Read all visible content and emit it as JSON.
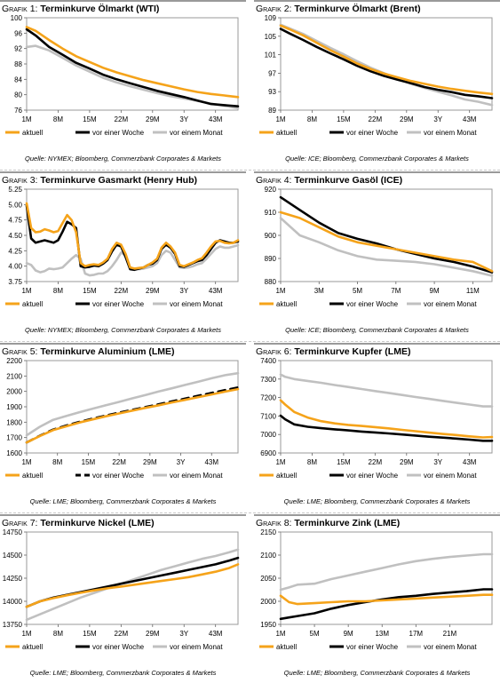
{
  "charts": [
    {
      "id": "g1",
      "label": "Grafik 1:",
      "title": "Terminkurve Ölmarkt (WTI)",
      "source": "Quelle: NYMEX; Bloomberg, Commerzbank Corporates & Markets",
      "legend": [
        "aktuell",
        "vor einer Woche",
        "vor einem Monat"
      ]
    },
    {
      "id": "g2",
      "label": "Grafik 2:",
      "title": "Terminkurve Ölmarkt (Brent)",
      "source": "Quelle: ICE; Bloomberg, Commerzbank Corporates & Markets",
      "legend": [
        "aktuell",
        "vor einer Woche",
        "vor einem Monat"
      ]
    },
    {
      "id": "g3",
      "label": "Grafik 3:",
      "title": "Terminkurve Gasmarkt (Henry Hub)",
      "source": "Quelle: NYMEX; Bloomberg, Commerzbank Corporates & Markets",
      "legend": [
        "aktuell",
        "vor einer Woche",
        "vor einem Monat"
      ]
    },
    {
      "id": "g4",
      "label": "Grafik 4:",
      "title": "Terminkurve Gasöl (ICE)",
      "source": "Quelle: ICE; Bloomberg, Commerzbank Corporates & Markets",
      "legend": [
        "aktuell",
        "vor einer Woche",
        "vor einem Monat"
      ]
    },
    {
      "id": "g5",
      "label": "Grafik 5:",
      "title": " Terminkurve Aluminium (LME)",
      "source": "Quelle: LME; Bloomberg, Commerzbank Corporates & Markets",
      "legend": [
        "aktuell",
        "vor einer Woche",
        "vor einem Monat"
      ]
    },
    {
      "id": "g6",
      "label": "Grafik 6:",
      "title": " Terminkurve Kupfer (LME)",
      "source": "Quelle: LME; Bloomberg, Commerzbank Corporates & Markets",
      "legend": [
        "aktuell",
        "vor einer Woche",
        "vor einem Monat"
      ]
    },
    {
      "id": "g7",
      "label": "Grafik 7:",
      "title": "Terminkurve Nickel (LME)",
      "source": "Quelle: LME; Bloomberg, Commerzbank Corporates & Markets",
      "legend": [
        "aktuell",
        "vor einer Woche",
        "vor einem Monat"
      ]
    },
    {
      "id": "g8",
      "label": "Grafik 8:",
      "title": "Terminkurve Zink (LME)",
      "source": "Quelle: LME; Bloomberg, Commerzbank Corporates & Markets",
      "legend": [
        "aktuell",
        "vor einer Woche",
        "vor einem Monat"
      ]
    }
  ],
  "colors": {
    "aktuell": "#f5a31a",
    "woche": "#000000",
    "monat": "#c0c0c0",
    "frame": "#9a9a9a"
  },
  "chart_data": [
    {
      "type": "line",
      "title": "Terminkurve Ölmarkt (WTI)",
      "x": [
        1,
        3,
        6,
        9,
        12,
        15,
        18,
        21,
        24,
        27,
        30,
        33,
        36,
        39,
        42,
        45,
        48
      ],
      "xticks": [
        "1M",
        "8M",
        "15M",
        "22M",
        "29M",
        "3Y",
        "43M"
      ],
      "xtick_values": [
        1,
        8,
        15,
        22,
        29,
        36,
        43
      ],
      "ylim": [
        76,
        100
      ],
      "yticks": [
        76,
        80,
        84,
        88,
        92,
        96,
        100
      ],
      "series": [
        {
          "name": "aktuell",
          "values": [
            97.6,
            96.6,
            94.2,
            92.0,
            90.0,
            88.5,
            87.0,
            85.8,
            84.8,
            83.8,
            83.0,
            82.2,
            81.4,
            80.7,
            80.2,
            79.8,
            79.4
          ]
        },
        {
          "name": "vor einer Woche",
          "values": [
            97.0,
            95.4,
            92.4,
            90.4,
            88.3,
            86.8,
            85.2,
            84.0,
            83.0,
            82.0,
            81.0,
            80.2,
            79.4,
            78.5,
            77.6,
            77.3,
            77.0
          ]
        },
        {
          "name": "vor einem Monat",
          "values": [
            92.4,
            92.7,
            91.5,
            89.6,
            87.6,
            86.0,
            84.4,
            83.2,
            82.2,
            81.3,
            80.4,
            79.6,
            79.0,
            78.4,
            77.7,
            77.1,
            76.5
          ]
        }
      ]
    },
    {
      "type": "line",
      "title": "Terminkurve Ölmarkt (Brent)",
      "x": [
        1,
        3,
        6,
        9,
        12,
        15,
        18,
        21,
        24,
        27,
        30,
        33,
        36,
        39,
        42,
        45,
        48
      ],
      "xticks": [
        "1M",
        "8M",
        "15M",
        "22M",
        "29M",
        "3Y",
        "43M"
      ],
      "xtick_values": [
        1,
        8,
        15,
        22,
        29,
        36,
        43
      ],
      "ylim": [
        89,
        109
      ],
      "yticks": [
        89,
        93,
        97,
        101,
        105,
        109
      ],
      "series": [
        {
          "name": "aktuell",
          "values": [
            107.3,
            106.5,
            105.2,
            103.6,
            102.0,
            100.6,
            99.1,
            97.9,
            96.9,
            96.1,
            95.3,
            94.7,
            94.1,
            93.6,
            93.2,
            92.8,
            92.5
          ]
        },
        {
          "name": "vor einer Woche",
          "values": [
            106.6,
            105.6,
            104.2,
            102.7,
            101.3,
            100.0,
            98.6,
            97.4,
            96.4,
            95.6,
            94.8,
            94.0,
            93.4,
            92.9,
            92.3,
            92.0,
            91.6
          ]
        },
        {
          "name": "vor einem Monat",
          "values": [
            107.5,
            106.7,
            105.5,
            104.0,
            102.5,
            101.1,
            99.6,
            98.2,
            97.0,
            95.8,
            94.7,
            93.8,
            93.0,
            92.2,
            91.3,
            90.8,
            90.1
          ]
        }
      ]
    },
    {
      "type": "line",
      "title": "Terminkurve Gasmarkt (Henry Hub)",
      "x": [
        1,
        2,
        3,
        4,
        5,
        6,
        7,
        8,
        9,
        10,
        11,
        12,
        13,
        14,
        15,
        16,
        17,
        18,
        19,
        20,
        21,
        22,
        23,
        24,
        25,
        26,
        27,
        28,
        29,
        30,
        31,
        32,
        33,
        34,
        35,
        36,
        37,
        38,
        39,
        40,
        41,
        42,
        43,
        44,
        45,
        46,
        47,
        48
      ],
      "xticks": [
        "1M",
        "8M",
        "15M",
        "22M",
        "29M",
        "3Y",
        "43M"
      ],
      "xtick_values": [
        1,
        8,
        15,
        22,
        29,
        36,
        43
      ],
      "ylim": [
        3.75,
        5.25
      ],
      "yticks": [
        3.75,
        4.0,
        4.25,
        4.5,
        4.75,
        5.0,
        5.25
      ],
      "series": [
        {
          "name": "aktuell",
          "values": [
            5.02,
            4.62,
            4.55,
            4.56,
            4.6,
            4.58,
            4.55,
            4.57,
            4.7,
            4.83,
            4.75,
            4.55,
            4.05,
            4.0,
            4.02,
            4.03,
            4.02,
            4.06,
            4.12,
            4.28,
            4.38,
            4.35,
            4.2,
            3.98,
            3.96,
            3.97,
            3.98,
            4.02,
            4.06,
            4.12,
            4.3,
            4.38,
            4.32,
            4.22,
            4.02,
            4.0,
            4.03,
            4.06,
            4.1,
            4.13,
            4.22,
            4.32,
            4.4,
            4.41,
            4.38,
            4.37,
            4.38,
            4.42
          ]
        },
        {
          "name": "vor einer Woche",
          "values": [
            4.98,
            4.45,
            4.38,
            4.4,
            4.42,
            4.4,
            4.38,
            4.42,
            4.56,
            4.72,
            4.68,
            4.62,
            4.0,
            3.98,
            3.99,
            4.01,
            4.0,
            4.04,
            4.1,
            4.24,
            4.35,
            4.32,
            4.15,
            3.95,
            3.94,
            3.96,
            3.98,
            4.02,
            4.04,
            4.1,
            4.28,
            4.35,
            4.3,
            4.2,
            4.0,
            3.99,
            4.02,
            4.05,
            4.08,
            4.1,
            4.18,
            4.28,
            4.38,
            4.42,
            4.4,
            4.38,
            4.38,
            4.4
          ]
        },
        {
          "name": "vor einem Monat",
          "values": [
            4.05,
            4.02,
            3.93,
            3.9,
            3.92,
            3.96,
            3.95,
            3.96,
            3.98,
            4.05,
            4.12,
            4.18,
            4.12,
            3.88,
            3.85,
            3.86,
            3.88,
            3.88,
            3.92,
            4.0,
            4.1,
            4.22,
            4.18,
            3.98,
            3.95,
            3.95,
            3.96,
            3.98,
            4.0,
            4.05,
            4.18,
            4.25,
            4.22,
            4.1,
            3.98,
            3.97,
            3.98,
            4.0,
            4.03,
            4.05,
            4.12,
            4.2,
            4.28,
            4.32,
            4.3,
            4.3,
            4.32,
            4.34
          ]
        }
      ]
    },
    {
      "type": "line",
      "title": "Terminkurve Gasöl (ICE)",
      "x": [
        1,
        2,
        3,
        4,
        5,
        6,
        7,
        8,
        9,
        10,
        11,
        12
      ],
      "xticks": [
        "1M",
        "3M",
        "5M",
        "7M",
        "9M",
        "11M"
      ],
      "xtick_values": [
        1,
        3,
        5,
        7,
        9,
        11
      ],
      "ylim": [
        880,
        920
      ],
      "yticks": [
        880,
        890,
        900,
        910,
        920
      ],
      "series": [
        {
          "name": "aktuell",
          "values": [
            910.0,
            907.5,
            903.5,
            899.5,
            897.0,
            895.5,
            894.0,
            892.5,
            891.0,
            889.5,
            888.5,
            884.5
          ]
        },
        {
          "name": "vor einer Woche",
          "values": [
            916.5,
            911.0,
            905.5,
            901.0,
            898.5,
            896.5,
            894.0,
            892.0,
            890.0,
            888.5,
            886.5,
            884.0
          ]
        },
        {
          "name": "vor einem Monat",
          "values": [
            907.5,
            900.0,
            897.0,
            893.5,
            891.0,
            889.5,
            889.0,
            888.5,
            887.5,
            886.0,
            884.5,
            882.5
          ]
        }
      ]
    },
    {
      "type": "line",
      "title": "Terminkurve Aluminium (LME)",
      "x": [
        1,
        4,
        7,
        10,
        13,
        16,
        19,
        22,
        25,
        28,
        31,
        34,
        37,
        40,
        43,
        46,
        49
      ],
      "xticks": [
        "1M",
        "8M",
        "15M",
        "22M",
        "29M",
        "3Y",
        "43M"
      ],
      "xtick_values": [
        1,
        8,
        15,
        22,
        29,
        36,
        43
      ],
      "ylim": [
        1600,
        2200
      ],
      "yticks": [
        1600,
        1700,
        1800,
        1900,
        2000,
        2100,
        2200
      ],
      "series": [
        {
          "name": "aktuell",
          "values": [
            1668,
            1710,
            1748,
            1773,
            1798,
            1818,
            1838,
            1857,
            1875,
            1893,
            1910,
            1928,
            1945,
            1963,
            1980,
            1998,
            2015
          ]
        },
        {
          "name": "vor einer Woche",
          "values": [
            1668,
            1712,
            1752,
            1778,
            1802,
            1823,
            1843,
            1862,
            1880,
            1898,
            1916,
            1935,
            1953,
            1972,
            1990,
            2008,
            2026
          ]
        },
        {
          "name": "vor einem Monat",
          "values": [
            1715,
            1770,
            1815,
            1840,
            1865,
            1888,
            1910,
            1932,
            1955,
            1977,
            1999,
            2020,
            2042,
            2063,
            2085,
            2105,
            2118
          ]
        }
      ]
    },
    {
      "type": "line",
      "title": "Terminkurve Kupfer (LME)",
      "x": [
        1,
        2,
        4,
        7,
        10,
        13,
        16,
        19,
        22,
        25,
        28,
        31,
        34,
        37,
        40,
        43,
        46,
        48
      ],
      "xticks": [
        "1M",
        "8M",
        "15M",
        "22M",
        "29M",
        "3Y",
        "43M"
      ],
      "xtick_values": [
        1,
        8,
        15,
        22,
        29,
        36,
        43
      ],
      "ylim": [
        6900,
        7400
      ],
      "yticks": [
        6900,
        7000,
        7100,
        7200,
        7300,
        7400
      ],
      "series": [
        {
          "name": "aktuell",
          "values": [
            7185,
            7162,
            7122,
            7092,
            7072,
            7060,
            7052,
            7046,
            7040,
            7033,
            7025,
            7018,
            7010,
            7003,
            6997,
            6990,
            6984,
            6986
          ]
        },
        {
          "name": "vor einer Woche",
          "values": [
            7102,
            7082,
            7055,
            7042,
            7034,
            7028,
            7022,
            7016,
            7011,
            7006,
            7000,
            6994,
            6988,
            6983,
            6978,
            6972,
            6966,
            6966
          ]
        },
        {
          "name": "vor einem Monat",
          "values": [
            7325,
            7312,
            7300,
            7290,
            7280,
            7268,
            7257,
            7246,
            7235,
            7225,
            7214,
            7203,
            7193,
            7182,
            7172,
            7162,
            7152,
            7152
          ]
        }
      ]
    },
    {
      "type": "line",
      "title": "Terminkurve Nickel (LME)",
      "x": [
        1,
        4,
        7,
        10,
        13,
        16,
        19,
        22,
        25,
        28,
        31,
        34,
        37,
        40,
        43,
        46,
        48
      ],
      "xticks": [
        "1M",
        "8M",
        "15M",
        "22M",
        "29M",
        "3Y",
        "43M"
      ],
      "xtick_values": [
        1,
        8,
        15,
        22,
        29,
        36,
        43
      ],
      "ylim": [
        13750,
        14750
      ],
      "yticks": [
        13750,
        14000,
        14250,
        14500,
        14750
      ],
      "series": [
        {
          "name": "aktuell",
          "values": [
            13940,
            14000,
            14035,
            14065,
            14092,
            14118,
            14140,
            14160,
            14180,
            14200,
            14220,
            14240,
            14262,
            14290,
            14320,
            14360,
            14400
          ]
        },
        {
          "name": "vor einer Woche",
          "values": [
            13940,
            14000,
            14040,
            14070,
            14100,
            14130,
            14160,
            14190,
            14220,
            14250,
            14280,
            14310,
            14340,
            14370,
            14400,
            14440,
            14470
          ]
        },
        {
          "name": "vor einem Monat",
          "values": [
            13800,
            13860,
            13920,
            13980,
            14040,
            14090,
            14140,
            14190,
            14240,
            14290,
            14340,
            14380,
            14420,
            14460,
            14490,
            14530,
            14560
          ]
        }
      ]
    },
    {
      "type": "line",
      "title": "Terminkurve Zink (LME)",
      "x": [
        1,
        2,
        3,
        5,
        7,
        9,
        11,
        13,
        15,
        17,
        19,
        21,
        23,
        25,
        26
      ],
      "xticks": [
        "1M",
        "5M",
        "9M",
        "13M",
        "17M",
        "21M"
      ],
      "xtick_values": [
        1,
        5,
        9,
        13,
        17,
        21
      ],
      "ylim": [
        1950,
        2150
      ],
      "yticks": [
        1950,
        2000,
        2050,
        2100,
        2150
      ],
      "series": [
        {
          "name": "aktuell",
          "values": [
            2012,
            1998,
            1994,
            1996,
            1998,
            2000,
            2000,
            2002,
            2004,
            2006,
            2008,
            2010,
            2012,
            2014,
            2014
          ]
        },
        {
          "name": "vor einer Woche",
          "values": [
            1962,
            1965,
            1968,
            1974,
            1984,
            1992,
            1998,
            2004,
            2009,
            2012,
            2016,
            2019,
            2022,
            2026,
            2026
          ]
        },
        {
          "name": "vor einem Monat",
          "values": [
            2025,
            2030,
            2036,
            2038,
            2048,
            2056,
            2064,
            2072,
            2080,
            2087,
            2092,
            2096,
            2099,
            2102,
            2102
          ]
        }
      ]
    }
  ]
}
